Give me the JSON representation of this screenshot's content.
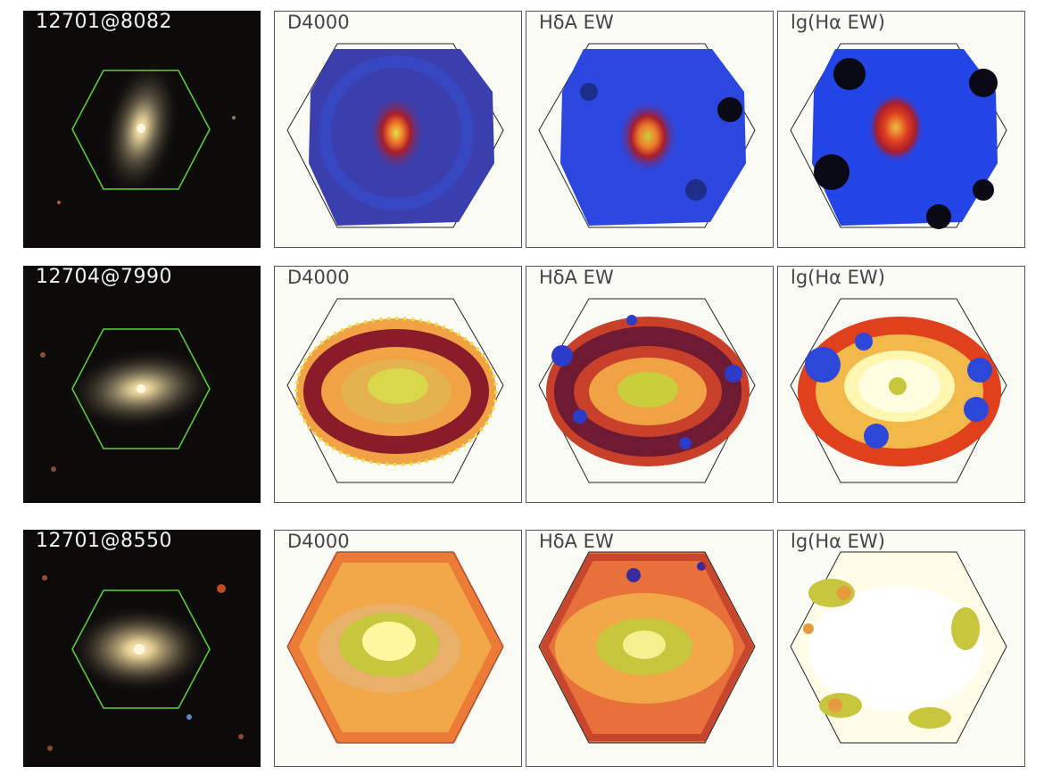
{
  "rows": [
    {
      "galaxy_id": "12701@8082",
      "panels": [
        {
          "label": "D4000",
          "fill": "#3b3fae",
          "core": [
            "#e0e14a",
            "#f07a2a",
            "#a81c2c"
          ],
          "edge": "#3052e6"
        },
        {
          "label": "HδA EW",
          "fill": "#2b47e0",
          "core": [
            "#c8cf3a",
            "#f07a2a",
            "#a81c2c"
          ],
          "edge": "#1c2d8a"
        },
        {
          "label": "lg(Hα EW)",
          "fill": "#2345e8",
          "core": [
            "#f0c040",
            "#e04020",
            "#a81c2c"
          ],
          "edge": "#0a0a16"
        }
      ]
    },
    {
      "galaxy_id": "12704@7990",
      "panels": [
        {
          "label": "D4000",
          "fill": "#f0a244",
          "core": [
            "#d8d84a",
            "#f0a244",
            "#8a1c2a"
          ],
          "edge": "#c83a22"
        },
        {
          "label": "HδA EW",
          "fill": "#f0a244",
          "core": [
            "#c8cf3a",
            "#f0a244",
            "#7a1b30"
          ],
          "edge": "#2d3cc8"
        },
        {
          "label": "lg(Hα EW)",
          "fill": "#f2b84a",
          "core": [
            "#fffde0",
            "#fff6b0",
            "#e0401c"
          ],
          "edge": "#2d48d8"
        }
      ]
    },
    {
      "galaxy_id": "12701@8550",
      "panels": [
        {
          "label": "D4000",
          "fill": "#f2a848",
          "core": [
            "#fff6a0",
            "#c8c63c",
            "#f2a848"
          ],
          "edge": "#e8552a"
        },
        {
          "label": "HδA EW",
          "fill": "#f2a848",
          "core": [
            "#f4f090",
            "#c8c63c",
            "#f2a848"
          ],
          "edge": "#b02a24"
        },
        {
          "label": "lg(Hα EW)",
          "fill": "#fffce8",
          "core": [
            "#ffffff",
            "#fffde8",
            "#fff6c0"
          ],
          "edge": "#c8c63c"
        }
      ]
    }
  ]
}
